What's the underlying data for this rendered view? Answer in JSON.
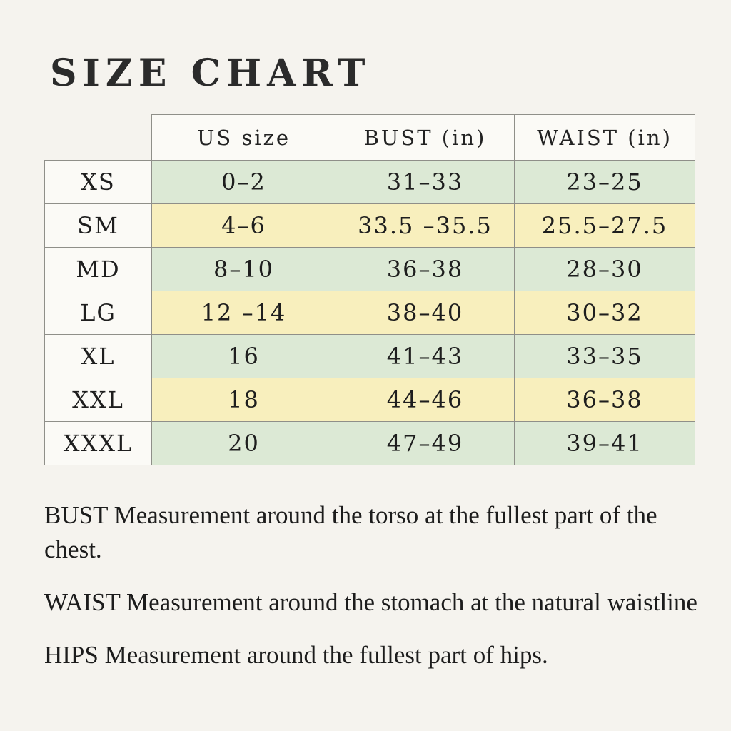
{
  "page": {
    "title": "SIZE CHART",
    "background_color": "#f5f3ee"
  },
  "table": {
    "columns": [
      "US size",
      "BUST (in)",
      "WAIST (in)"
    ],
    "rows": [
      {
        "size": "XS",
        "us_size": "0–2",
        "bust": "31–33",
        "waist": "23–25",
        "highlight": "green"
      },
      {
        "size": "SM",
        "us_size": "4–6",
        "bust": "33.5 –35.5",
        "waist": "25.5–27.5",
        "highlight": "yellow"
      },
      {
        "size": "MD",
        "us_size": "8–10",
        "bust": "36–38",
        "waist": "28–30",
        "highlight": "green"
      },
      {
        "size": "LG",
        "us_size": "12 –14",
        "bust": "38–40",
        "waist": "30–32",
        "highlight": "yellow"
      },
      {
        "size": "XL",
        "us_size": "16",
        "bust": "41–43",
        "waist": "33–35",
        "highlight": "green"
      },
      {
        "size": "XXL",
        "us_size": "18",
        "bust": "44–46",
        "waist": "36–38",
        "highlight": "yellow"
      },
      {
        "size": "XXXL",
        "us_size": "20",
        "bust": "47–49",
        "waist": "39–41",
        "highlight": "green"
      }
    ],
    "colors": {
      "green": "#dce9d5",
      "yellow": "#f8efbd",
      "label_bg": "#fbfaf6",
      "border": "#8f8f89"
    }
  },
  "notes": [
    "BUST Measurement around the torso at the fullest part of the chest.",
    "WAIST Measurement around the stomach at the natural waistline",
    "HIPS Measurement around the fullest part of hips."
  ]
}
